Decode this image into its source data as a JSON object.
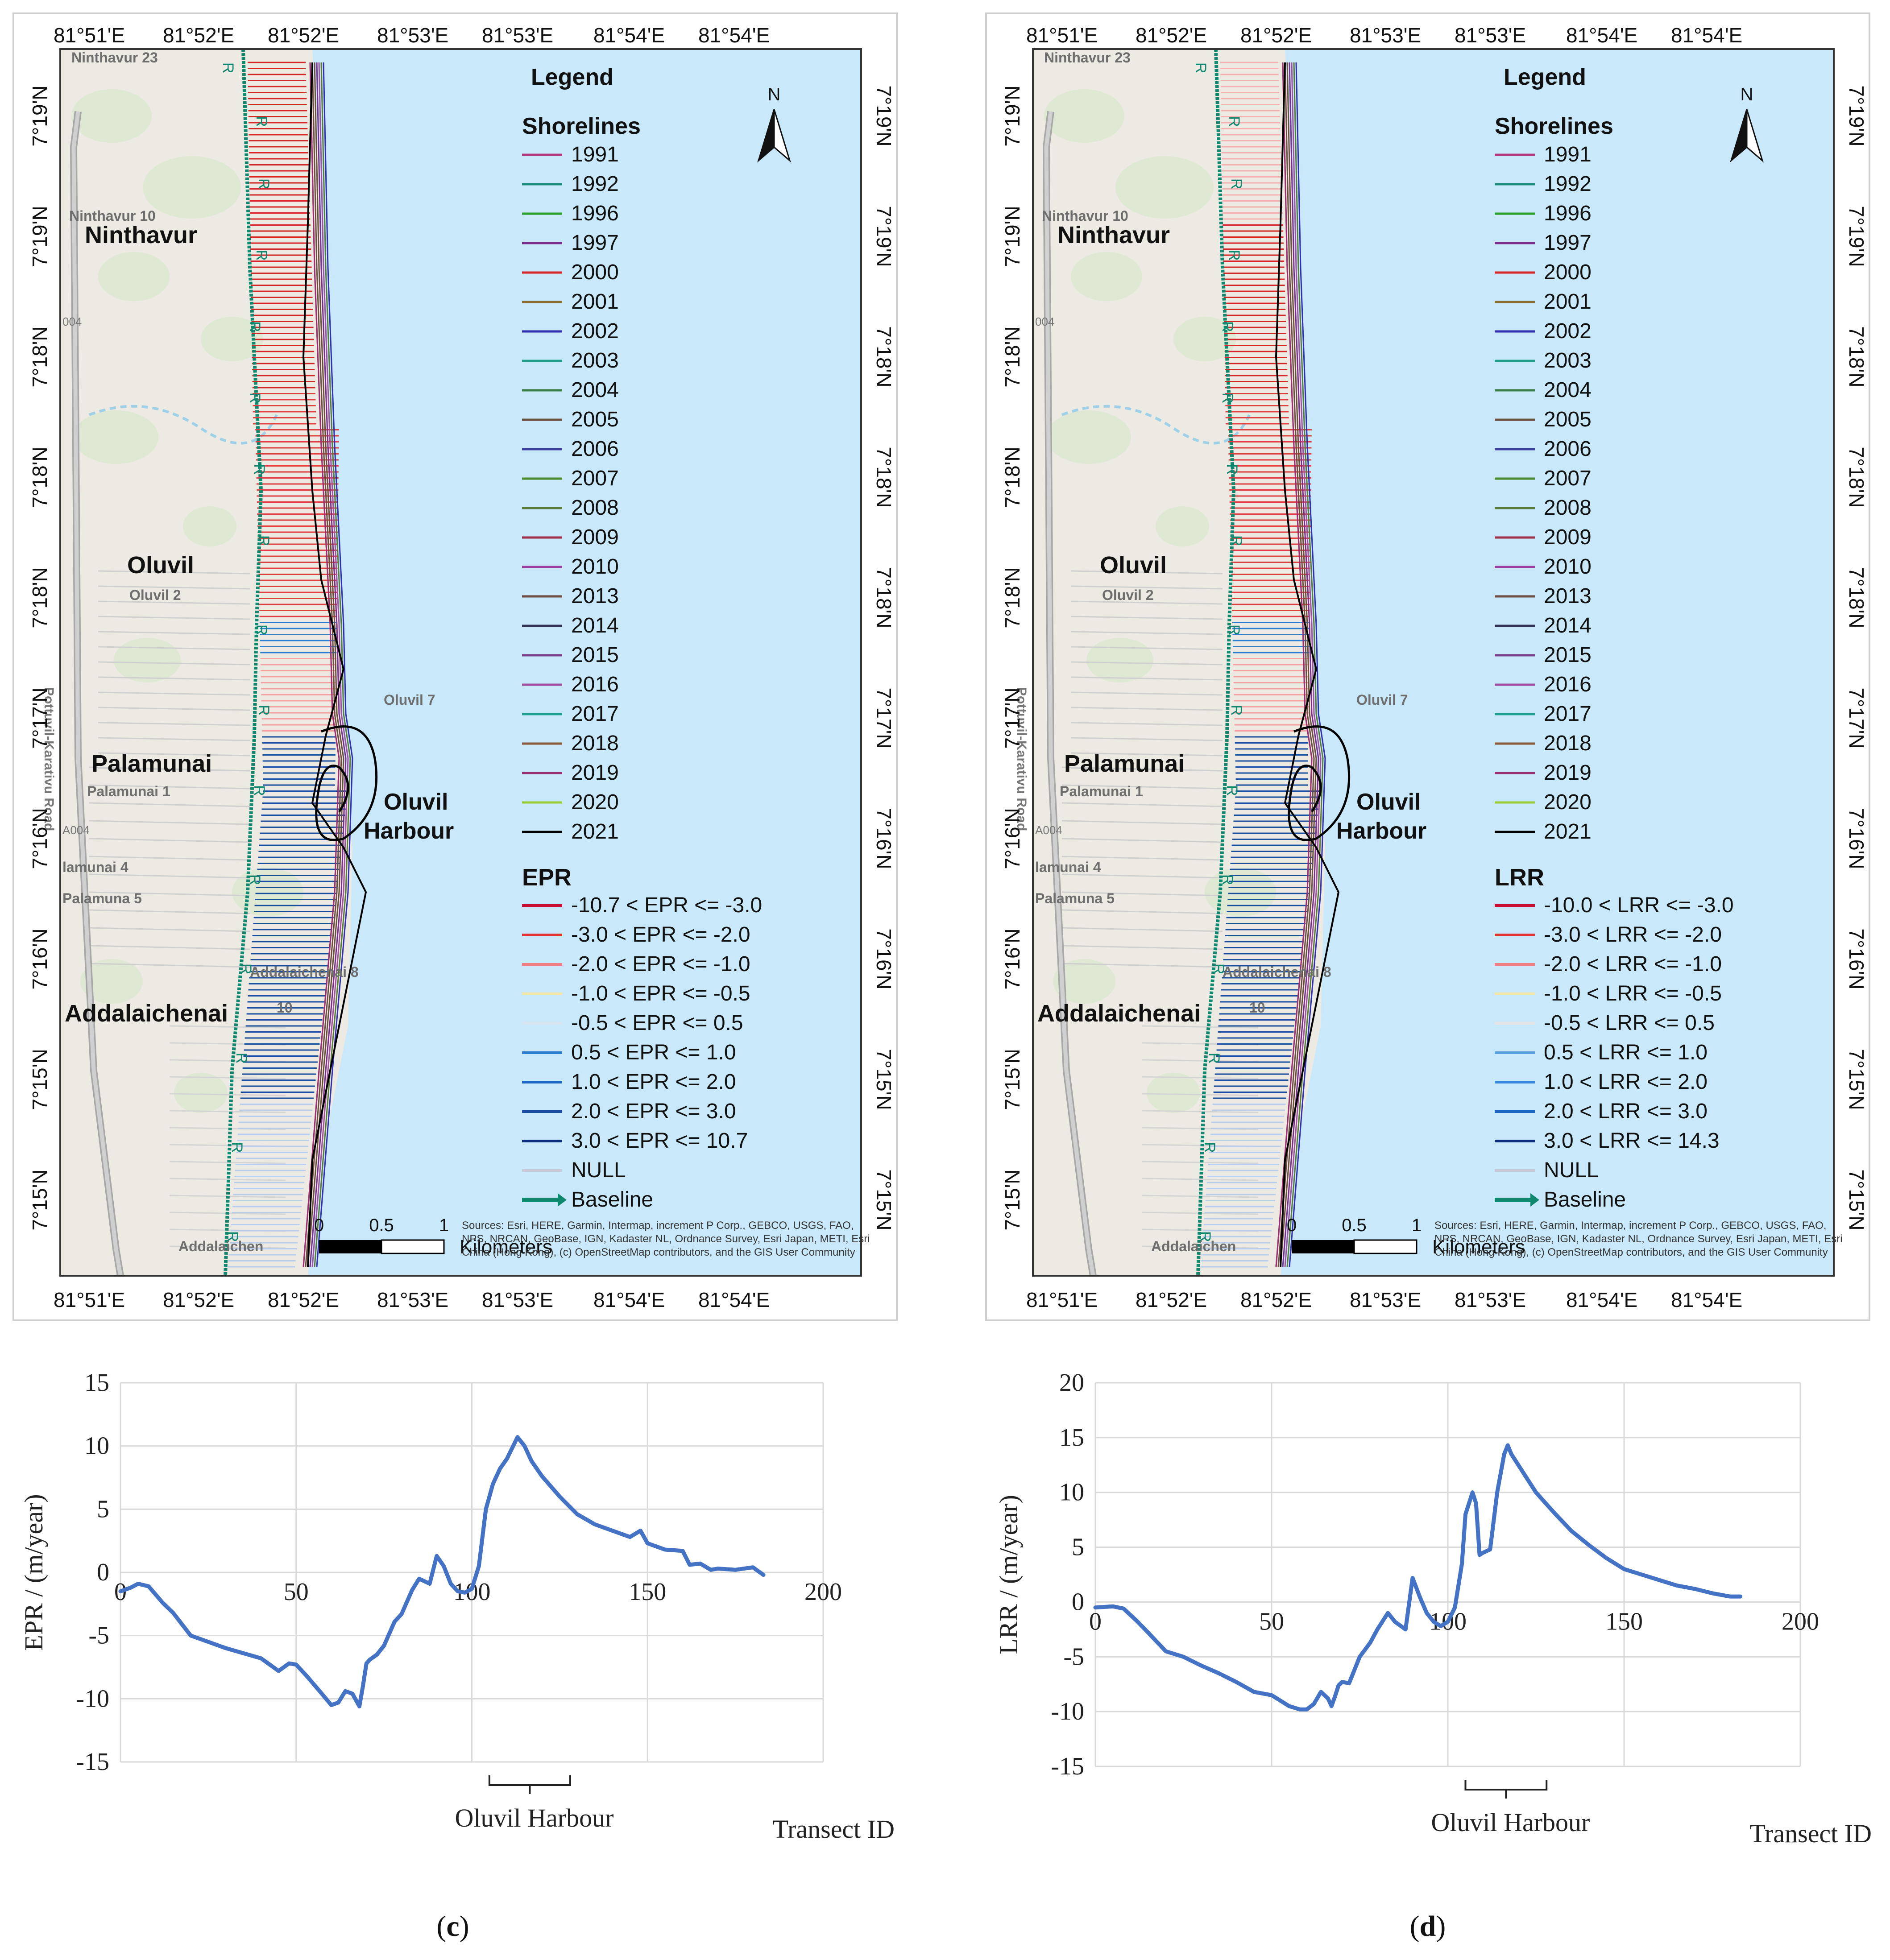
{
  "panels": [
    {
      "id": "c",
      "caption_letter": "c",
      "map": {
        "top_ticks": [
          "81°51'E",
          "81°52'E",
          "81°52'E",
          "81°53'E",
          "81°53'E",
          "81°54'E",
          "81°54'E"
        ],
        "bottom_ticks": [
          "81°51'E",
          "81°52'E",
          "81°52'E",
          "81°53'E",
          "81°53'E",
          "81°54'E",
          "81°54'E"
        ],
        "lat_ticks": [
          "7°19'N",
          "7°19'N",
          "7°18'N",
          "7°18'N",
          "7°18'N",
          "7°17'N",
          "7°16'N",
          "7°16'N",
          "7°15'N",
          "7°15'N"
        ],
        "places": {
          "ninthavur": "Ninthavur",
          "oluvil": "Oluvil",
          "palamunai": "Palamunai",
          "addalaichenai": "Addalaichenai",
          "harbour_line1": "Oluvil",
          "harbour_line2": "Harbour"
        },
        "minor_places": [
          "Ninthavur 23",
          "Ninthavur 10",
          "Oluvil 2",
          "Oluvil 7",
          "Palamunai 1",
          "lamunai 4",
          "Palamuna 5",
          "Addalaichenai 8",
          "10",
          "Addalaichen"
        ],
        "road_name": "Pottuvil-Karativu Road",
        "road_codes": [
          "004",
          "A004"
        ],
        "legend": {
          "title": "Legend",
          "shorelines_title": "Shorelines",
          "years": [
            "1991",
            "1992",
            "1996",
            "1997",
            "2000",
            "2001",
            "2002",
            "2003",
            "2004",
            "2005",
            "2006",
            "2007",
            "2008",
            "2009",
            "2010",
            "2013",
            "2014",
            "2015",
            "2016",
            "2017",
            "2018",
            "2019",
            "2020",
            "2021"
          ],
          "year_colors": [
            "#b2367a",
            "#1a8a7a",
            "#2ca02c",
            "#7b2d8b",
            "#d62728",
            "#8c6d31",
            "#3030b0",
            "#1f9e89",
            "#3a7d44",
            "#6b4e3d",
            "#4040a0",
            "#4c8c2b",
            "#5b7b3a",
            "#a0304a",
            "#9b3fa0",
            "#6d4c41",
            "#333355",
            "#7a3f8a",
            "#a050a0",
            "#20a090",
            "#8a5a3a",
            "#9b3070",
            "#9acd32",
            "#000000"
          ],
          "rate_title": "EPR",
          "classes": [
            "-10.7 < EPR <= -3.0",
            "-3.0 < EPR <= -2.0",
            "-2.0 < EPR <= -1.0",
            "-1.0 < EPR <= -0.5",
            "-0.5 < EPR <= 0.5",
            "0.5 < EPR <= 1.0",
            "1.0 < EPR <= 2.0",
            "2.0 < EPR <= 3.0",
            "3.0 < EPR <= 10.7",
            "NULL"
          ],
          "class_colors": [
            "#c8102e",
            "#e03030",
            "#f08080",
            "#f5e6a8",
            "#d8e4f0",
            "#2b7fd1",
            "#1f66c1",
            "#1a4fa0",
            "#0d2f7a",
            "#c8c8d8"
          ],
          "baseline_label": "Baseline",
          "north_label": "N"
        },
        "scale": {
          "labels": [
            "0",
            "0.5",
            "1"
          ],
          "unit": "Kilometers"
        },
        "credits": "Sources: Esri, HERE, Garmin, Intermap, increment P Corp., GEBCO, USGS, FAO, NPS, NRCAN, GeoBase, IGN, Kadaster NL, Ordnance Survey, Esri Japan, METI, Esri China (Hong Kong), (c) OpenStreetMap contributors, and the GIS User Community",
        "colors": {
          "sea": "#c9e9fb",
          "land": "#eceae2",
          "veg": "#dde8d2",
          "baseline": "#108870"
        }
      },
      "chart_data": {
        "type": "line",
        "title": "",
        "xlabel": "Transect ID",
        "ylabel": "EPR / (m/year)",
        "xlim": [
          0,
          200
        ],
        "ylim": [
          -15,
          15
        ],
        "x_ticks": [
          0,
          50,
          100,
          150,
          200
        ],
        "y_ticks": [
          -15,
          -10,
          -5,
          0,
          5,
          10,
          15
        ],
        "grid": true,
        "annotation": "Oluvil Harbour",
        "annotation_range": [
          105,
          128
        ],
        "series": [
          {
            "name": "EPR",
            "color": "#4472c4",
            "x": [
              0,
              3,
              5,
              8,
              12,
              15,
              20,
              25,
              30,
              35,
              40,
              45,
              48,
              50,
              53,
              57,
              60,
              62,
              64,
              66,
              68,
              69,
              70,
              71,
              73,
              75,
              78,
              80,
              83,
              85,
              88,
              90,
              92,
              94,
              96,
              98,
              100,
              102,
              104,
              106,
              108,
              110,
              113,
              115,
              117,
              120,
              125,
              130,
              135,
              140,
              145,
              148,
              150,
              155,
              160,
              162,
              165,
              168,
              170,
              175,
              180,
              183
            ],
            "y": [
              -1.5,
              -1.2,
              -0.9,
              -1.1,
              -2.4,
              -3.2,
              -5.0,
              -5.5,
              -6.0,
              -6.4,
              -6.8,
              -7.8,
              -7.2,
              -7.3,
              -8.2,
              -9.5,
              -10.5,
              -10.3,
              -9.4,
              -9.6,
              -10.6,
              -9.0,
              -7.2,
              -6.9,
              -6.5,
              -5.8,
              -3.9,
              -3.3,
              -1.4,
              -0.5,
              -0.9,
              1.3,
              0.5,
              -0.9,
              -1.5,
              -1.6,
              -1.3,
              0.5,
              5.0,
              7.0,
              8.2,
              9.0,
              10.7,
              10.0,
              8.8,
              7.6,
              6.0,
              4.6,
              3.8,
              3.3,
              2.8,
              3.3,
              2.3,
              1.8,
              1.7,
              0.6,
              0.7,
              0.2,
              0.3,
              0.2,
              0.4,
              -0.2
            ]
          }
        ]
      }
    },
    {
      "id": "d",
      "caption_letter": "d",
      "map": {
        "top_ticks": [
          "81°51'E",
          "81°52'E",
          "81°52'E",
          "81°53'E",
          "81°53'E",
          "81°54'E",
          "81°54'E"
        ],
        "bottom_ticks": [
          "81°51'E",
          "81°52'E",
          "81°52'E",
          "81°53'E",
          "81°53'E",
          "81°54'E",
          "81°54'E"
        ],
        "lat_ticks": [
          "7°19'N",
          "7°19'N",
          "7°18'N",
          "7°18'N",
          "7°18'N",
          "7°17'N",
          "7°16'N",
          "7°16'N",
          "7°15'N",
          "7°15'N"
        ],
        "places": {
          "ninthavur": "Ninthavur",
          "oluvil": "Oluvil",
          "palamunai": "Palamunai",
          "addalaichenai": "Addalaichenai",
          "harbour_line1": "Oluvil",
          "harbour_line2": "Harbour"
        },
        "minor_places": [
          "Ninthavur 23",
          "Ninthavur 10",
          "Oluvil 2",
          "Oluvil 7",
          "Palamunai 1",
          "lamunai 4",
          "Palamuna 5",
          "Addalaichenai 8",
          "10",
          "Addalaichen"
        ],
        "road_name": "Pottuvil-Karativu Road",
        "road_codes": [
          "004",
          "A004"
        ],
        "legend": {
          "title": "Legend",
          "shorelines_title": "Shorelines",
          "years": [
            "1991",
            "1992",
            "1996",
            "1997",
            "2000",
            "2001",
            "2002",
            "2003",
            "2004",
            "2005",
            "2006",
            "2007",
            "2008",
            "2009",
            "2010",
            "2013",
            "2014",
            "2015",
            "2016",
            "2017",
            "2018",
            "2019",
            "2020",
            "2021"
          ],
          "year_colors": [
            "#b2367a",
            "#1a8a7a",
            "#2ca02c",
            "#7b2d8b",
            "#d62728",
            "#8c6d31",
            "#3030b0",
            "#1f9e89",
            "#3a7d44",
            "#6b4e3d",
            "#4040a0",
            "#4c8c2b",
            "#5b7b3a",
            "#a0304a",
            "#9b3fa0",
            "#6d4c41",
            "#333355",
            "#7a3f8a",
            "#a050a0",
            "#20a090",
            "#8a5a3a",
            "#9b3070",
            "#9acd32",
            "#000000"
          ],
          "rate_title": "LRR",
          "classes": [
            "-10.0 < LRR <= -3.0",
            "-3.0 < LRR <= -2.0",
            "-2.0 < LRR <= -1.0",
            "-1.0 < LRR <= -0.5",
            "-0.5 < LRR <= 0.5",
            "0.5 < LRR <= 1.0",
            "1.0 < LRR <= 2.0",
            "2.0 < LRR <= 3.0",
            "3.0 < LRR <= 14.3",
            "NULL"
          ],
          "class_colors": [
            "#c8102e",
            "#e03030",
            "#f08080",
            "#f5e6a8",
            "#e4e4e4",
            "#5aa0e0",
            "#3a86d8",
            "#1f66c1",
            "#0d2f7a",
            "#c8c8d8"
          ],
          "baseline_label": "Baseline",
          "north_label": "N"
        },
        "scale": {
          "labels": [
            "0",
            "0.5",
            "1"
          ],
          "unit": "Kilometers"
        },
        "credits": "Sources: Esri, HERE, Garmin, Intermap, increment P Corp., GEBCO, USGS, FAO, NPS, NRCAN, GeoBase, IGN, Kadaster NL, Ordnance Survey, Esri Japan, METI, Esri China (Hong Kong), (c) OpenStreetMap contributors, and the GIS User Community",
        "colors": {
          "sea": "#c9e9fb",
          "land": "#eceae2",
          "veg": "#dde8d2",
          "baseline": "#108870"
        }
      },
      "chart_data": {
        "type": "line",
        "title": "",
        "xlabel": "Transect ID",
        "ylabel": "LRR / (m/year)",
        "xlim": [
          0,
          200
        ],
        "ylim": [
          -15,
          20
        ],
        "x_ticks": [
          0,
          50,
          100,
          150,
          200
        ],
        "y_ticks": [
          -15,
          -10,
          -5,
          0,
          5,
          10,
          15,
          20
        ],
        "grid": true,
        "annotation": "Oluvil Harbour",
        "annotation_range": [
          105,
          128
        ],
        "series": [
          {
            "name": "LRR",
            "color": "#4472c4",
            "x": [
              0,
              5,
              8,
              12,
              15,
              20,
              25,
              30,
              35,
              40,
              45,
              50,
              55,
              58,
              60,
              62,
              64,
              66,
              67,
              68,
              69,
              70,
              72,
              75,
              78,
              80,
              83,
              85,
              88,
              90,
              92,
              94,
              96,
              98,
              100,
              102,
              104,
              105,
              107,
              108,
              109,
              110,
              112,
              114,
              116,
              117,
              118,
              120,
              125,
              130,
              135,
              140,
              145,
              150,
              155,
              160,
              165,
              170,
              175,
              180,
              183
            ],
            "y": [
              -0.5,
              -0.4,
              -0.6,
              -1.8,
              -2.8,
              -4.5,
              -5.0,
              -5.8,
              -6.5,
              -7.3,
              -8.2,
              -8.5,
              -9.5,
              -9.8,
              -9.8,
              -9.3,
              -8.2,
              -8.8,
              -9.5,
              -8.6,
              -7.6,
              -7.3,
              -7.4,
              -5.0,
              -3.7,
              -2.5,
              -1.0,
              -1.8,
              -2.5,
              2.2,
              0.5,
              -1.0,
              -1.8,
              -2.2,
              -1.8,
              -0.5,
              3.5,
              8.0,
              10.0,
              9.0,
              4.3,
              4.5,
              4.8,
              10.0,
              13.5,
              14.3,
              13.5,
              12.5,
              10.0,
              8.2,
              6.5,
              5.2,
              4.0,
              3.0,
              2.5,
              2.0,
              1.5,
              1.2,
              0.8,
              0.5,
              0.5
            ]
          }
        ]
      }
    }
  ]
}
